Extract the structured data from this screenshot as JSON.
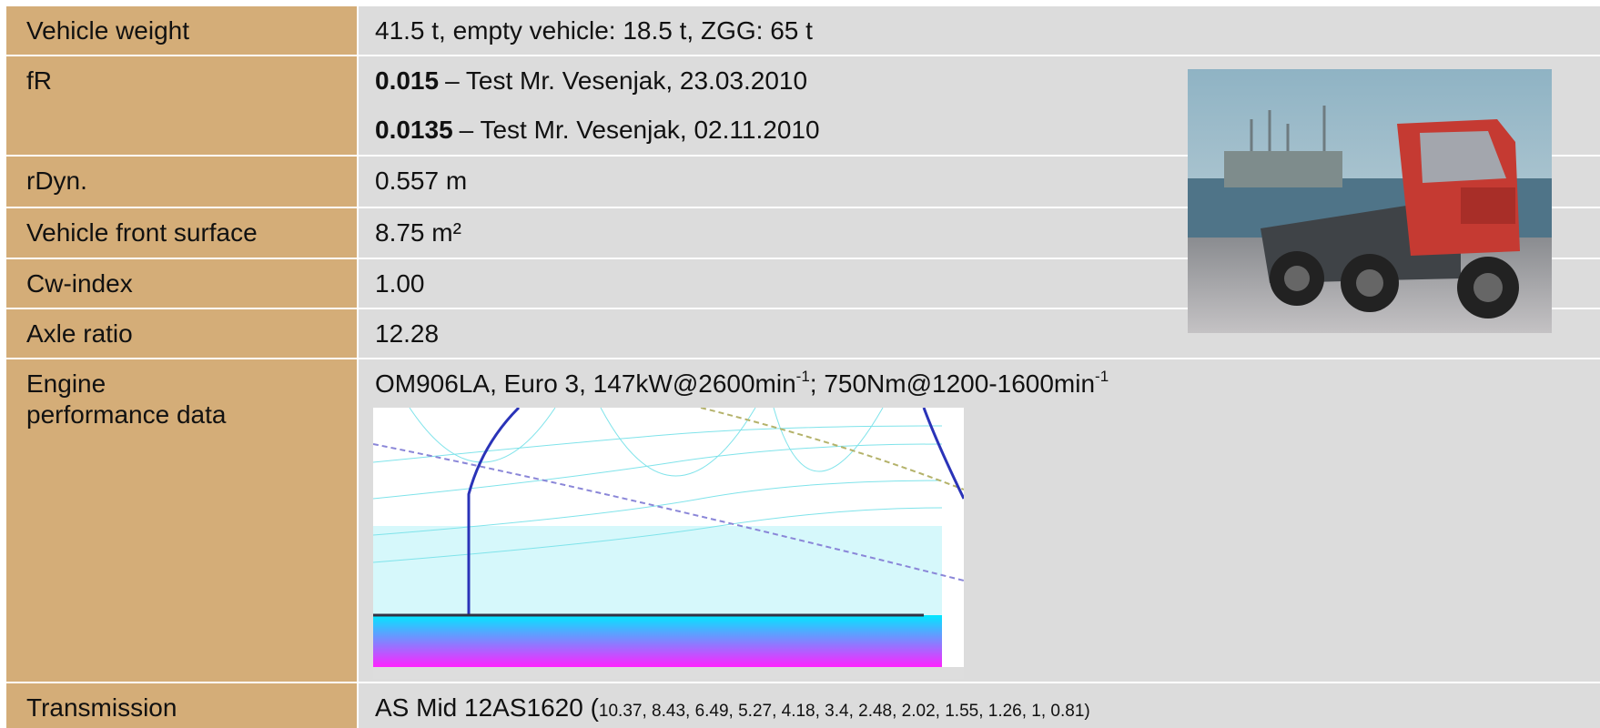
{
  "table": {
    "rows": [
      {
        "label": "Vehicle weight",
        "value": "41.5 t, empty vehicle: 18.5 t, ZGG: 65 t"
      },
      {
        "label": "fR",
        "lines": [
          {
            "bold": "0.015",
            "text": "– Test Mr. Vesenjak, 23.03.2010"
          },
          {
            "bold": "0.0135",
            "text": "– Test Mr. Vesenjak, 02.11.2010"
          }
        ]
      },
      {
        "label": "rDyn.",
        "value": "0.557 m"
      },
      {
        "label": "Vehicle front surface",
        "value": "8.75 m²"
      },
      {
        "label": "Cw-index",
        "value": "1.00"
      },
      {
        "label": "Axle ratio",
        "value": "12.28"
      },
      {
        "label_lines": [
          "Engine",
          "performance data"
        ],
        "parts": [
          "OM906LA, Euro 3, 147kW@2600min",
          "-1",
          "; 750Nm@1200-1600min",
          "-1"
        ]
      },
      {
        "label": "Transmission",
        "value": "AS Mid 12AS1620 (",
        "small": "10.37, 8.43, 6.49, 5.27, 4.18, 3.4, 2.48, 2.02, 1.55, 1.26, 1, 0.81)"
      }
    ]
  }
}
